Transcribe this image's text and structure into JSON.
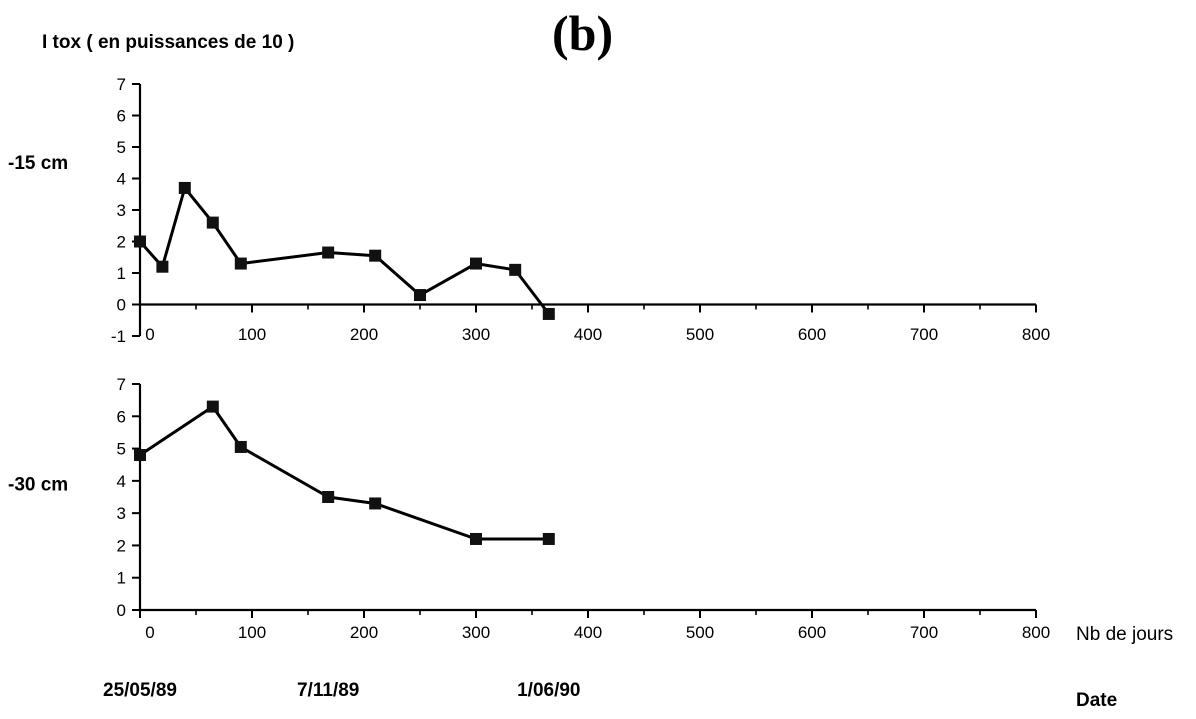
{
  "figure": {
    "panel_label": "(b)",
    "y_title": "I  tox  ( en puissances de 10 )"
  },
  "chart_data": [
    {
      "type": "line",
      "row_label": "-15 cm",
      "x": [
        0,
        20,
        40,
        65,
        90,
        168,
        210,
        250,
        300,
        335,
        365
      ],
      "series": [
        {
          "values": [
            2.0,
            1.2,
            3.7,
            2.6,
            1.3,
            1.65,
            1.55,
            0.3,
            1.3,
            1.1,
            -0.3
          ]
        }
      ],
      "xlim": [
        0,
        800
      ],
      "ylim": [
        -1,
        7
      ],
      "x_ticks": [
        0,
        100,
        200,
        300,
        400,
        500,
        600,
        700,
        800
      ],
      "y_ticks": [
        -1,
        0,
        1,
        2,
        3,
        4,
        5,
        6,
        7
      ],
      "xlabel": "",
      "ylabel": "I  tox  ( en puissances de 10 )",
      "grid": false
    },
    {
      "type": "line",
      "row_label": "-30 cm",
      "x": [
        0,
        65,
        90,
        168,
        210,
        300,
        365
      ],
      "series": [
        {
          "values": [
            4.8,
            6.3,
            5.05,
            3.5,
            3.3,
            2.2,
            2.2
          ]
        }
      ],
      "xlim": [
        0,
        800
      ],
      "ylim": [
        0,
        7
      ],
      "x_ticks": [
        0,
        100,
        200,
        300,
        400,
        500,
        600,
        700,
        800
      ],
      "y_ticks": [
        0,
        1,
        2,
        3,
        4,
        5,
        6,
        7
      ],
      "xlabel": "Nb de jours",
      "ylabel": "",
      "grid": false,
      "date_labels": [
        {
          "x": 0,
          "label": "25/05/89"
        },
        {
          "x": 168,
          "label": "7/11/89"
        },
        {
          "x": 365,
          "label": "1/06/90"
        }
      ],
      "date_axis_label": "Date"
    }
  ]
}
